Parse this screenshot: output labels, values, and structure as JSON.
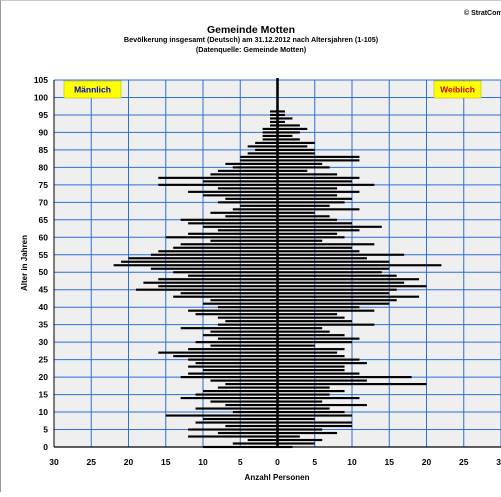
{
  "copyright": "© StratCom",
  "chart_data": {
    "type": "bar",
    "orientation": "horizontal",
    "title": "Gemeinde Motten",
    "subtitle": "Bevölkerung insgesamt (Deutsch) am 31.12.2012 nach Altersjahren (1-105)",
    "source": "(Datenquelle: Gemeinde Motten)",
    "xlabel": "Anzahl Personen",
    "ylabel": "Alter in Jahren",
    "xlim": [
      -30,
      30
    ],
    "ylim": [
      0,
      105
    ],
    "x_ticks": [
      -30,
      -25,
      -20,
      -15,
      -10,
      -5,
      0,
      5,
      10,
      15,
      20,
      25,
      30
    ],
    "x_tick_labels": [
      "30",
      "25",
      "20",
      "15",
      "10",
      "5",
      "0",
      "5",
      "10",
      "15",
      "20",
      "25",
      "30"
    ],
    "y_ticks": [
      0,
      5,
      10,
      15,
      20,
      25,
      30,
      35,
      40,
      45,
      50,
      55,
      60,
      65,
      70,
      75,
      80,
      85,
      90,
      95,
      100,
      105
    ],
    "grid": true,
    "series": [
      {
        "name": "Männlich",
        "label_color": "#0000cc",
        "values": [
          10,
          6,
          4,
          12,
          8,
          12,
          7,
          11,
          10,
          15,
          6,
          11,
          7,
          9,
          13,
          11,
          10,
          8,
          7,
          9,
          13,
          12,
          10,
          12,
          11,
          12,
          14,
          16,
          12,
          9,
          11,
          8,
          10,
          9,
          13,
          8,
          7,
          8,
          11,
          12,
          8,
          10,
          9,
          14,
          13,
          19,
          16,
          18,
          16,
          12,
          14,
          17,
          22,
          21,
          20,
          17,
          16,
          14,
          13,
          9,
          15,
          12,
          8,
          10,
          12,
          13,
          7,
          9,
          6,
          5,
          8,
          7,
          10,
          12,
          8,
          16,
          10,
          16,
          9,
          8,
          6,
          7,
          5,
          5,
          4,
          3,
          4,
          3,
          2,
          2,
          2,
          2,
          1,
          1,
          1,
          1,
          1,
          0,
          0,
          0,
          0,
          0,
          0,
          0,
          0,
          0
        ]
      },
      {
        "name": "Weiblich",
        "label_color": "#cc0000",
        "values": [
          2,
          5,
          6,
          3,
          8,
          6,
          10,
          10,
          5,
          10,
          9,
          7,
          12,
          6,
          11,
          7,
          9,
          7,
          20,
          12,
          18,
          11,
          9,
          9,
          12,
          11,
          9,
          8,
          9,
          5,
          10,
          11,
          9,
          7,
          6,
          13,
          10,
          9,
          8,
          13,
          11,
          15,
          16,
          19,
          15,
          16,
          20,
          17,
          19,
          16,
          14,
          15,
          22,
          15,
          12,
          17,
          11,
          10,
          13,
          6,
          9,
          8,
          11,
          14,
          10,
          8,
          7,
          5,
          11,
          7,
          9,
          10,
          8,
          11,
          8,
          13,
          10,
          11,
          8,
          4,
          7,
          6,
          11,
          11,
          5,
          5,
          4,
          5,
          3,
          2,
          3,
          4,
          3,
          1,
          2,
          1,
          1,
          0,
          0,
          0,
          0,
          0,
          0,
          0,
          0,
          0
        ]
      }
    ]
  }
}
